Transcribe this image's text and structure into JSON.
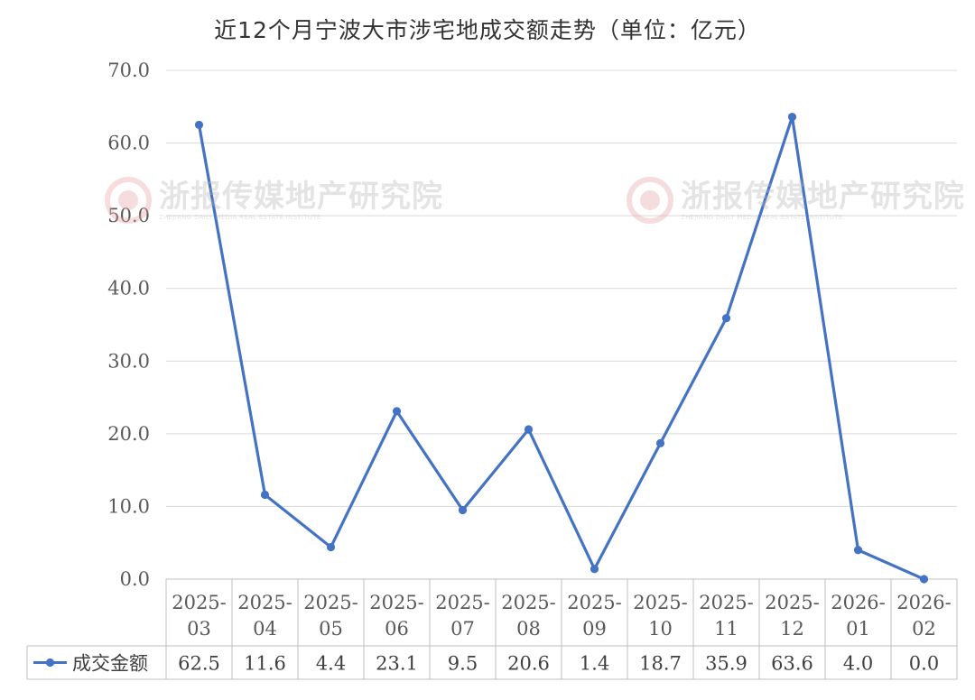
{
  "title": "近12个月宁波大市涉宅地成交额走势（单位：亿元）",
  "watermark": {
    "text_cn": "浙报传媒地产研究院",
    "text_en": "ZHEJIANG DAILY MEDIA REAL ESTATE INSTITUTE"
  },
  "chart_data": {
    "type": "line",
    "title": "近12个月宁波大市涉宅地成交额走势（单位：亿元）",
    "categories": [
      [
        "2025-",
        "03"
      ],
      [
        "2025-",
        "04"
      ],
      [
        "2025-",
        "05"
      ],
      [
        "2025-",
        "06"
      ],
      [
        "2025-",
        "07"
      ],
      [
        "2025-",
        "08"
      ],
      [
        "2025-",
        "09"
      ],
      [
        "2025-",
        "10"
      ],
      [
        "2025-",
        "11"
      ],
      [
        "2025-",
        "12"
      ],
      [
        "2026-",
        "01"
      ],
      [
        "2026-",
        "02"
      ]
    ],
    "series": [
      {
        "name": "成交金额",
        "values": [
          62.5,
          11.6,
          4.4,
          23.1,
          9.5,
          20.6,
          1.4,
          18.7,
          35.9,
          63.6,
          4.0,
          0.0
        ],
        "labels": [
          "62.5",
          "11.6",
          "4.4",
          "23.1",
          "9.5",
          "20.6",
          "1.4",
          "18.7",
          "35.9",
          "63.6",
          "4.0",
          "0.0"
        ],
        "color": "#4472C4"
      }
    ],
    "ylim": [
      0,
      70
    ],
    "yticks": [
      "0.0",
      "10.0",
      "20.0",
      "30.0",
      "40.0",
      "50.0",
      "60.0",
      "70.0"
    ],
    "grid": true,
    "data_table": true,
    "colors": {
      "line": "#4472C4",
      "grid": "#d9d9d9",
      "table_border": "#bfbfbf"
    }
  }
}
